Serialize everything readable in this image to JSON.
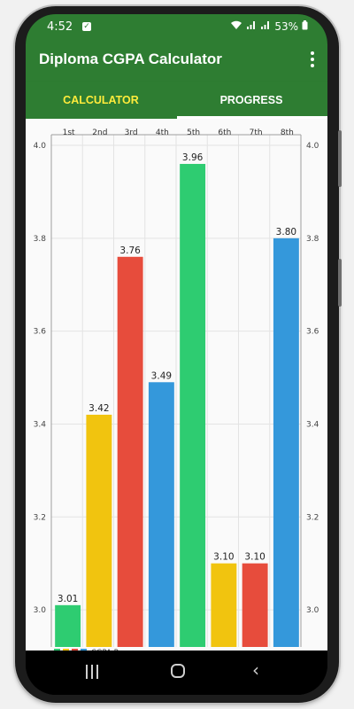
{
  "status": {
    "time": "4:52",
    "battery": "53%"
  },
  "app": {
    "title": "Diploma CGPA Calculator"
  },
  "tabs": [
    {
      "label": "CALCULATOR"
    },
    {
      "label": "PROGRESS"
    }
  ],
  "colors": {
    "green": "#2ecc71",
    "yellow": "#f1c40f",
    "red": "#e74c3c",
    "blue": "#3498db",
    "bar_green_dark": "#2e7d32"
  },
  "chart_data": {
    "type": "bar",
    "categories": [
      "1st",
      "2nd",
      "3rd",
      "4th",
      "5th",
      "6th",
      "7th",
      "8th"
    ],
    "series": [
      {
        "name": "CGPA Progress",
        "values": [
          3.01,
          3.42,
          3.76,
          3.49,
          3.96,
          3.1,
          3.1,
          3.8
        ]
      }
    ],
    "value_labels": [
      "3.01",
      "3.42",
      "3.76",
      "3.49",
      "3.96",
      "3.10",
      "3.10",
      "3.80"
    ],
    "bar_colors": [
      "#2ecc71",
      "#f1c40f",
      "#e74c3c",
      "#3498db",
      "#2ecc71",
      "#f1c40f",
      "#e74c3c",
      "#3498db"
    ],
    "y_ticks": [
      "3.0",
      "3.2",
      "3.4",
      "3.6",
      "3.8",
      "4.0"
    ],
    "y_tick_values": [
      3.0,
      3.2,
      3.4,
      3.6,
      3.8,
      4.0
    ],
    "ylim": [
      2.92,
      4.0
    ],
    "x_axis_position": "top",
    "y_axis": "both sides",
    "grid": true,
    "legend": {
      "label": "CGPA Progress",
      "position": "bottom-left",
      "swatch_colors": [
        "#2ecc71",
        "#f1c40f",
        "#e74c3c",
        "#3498db"
      ]
    }
  }
}
